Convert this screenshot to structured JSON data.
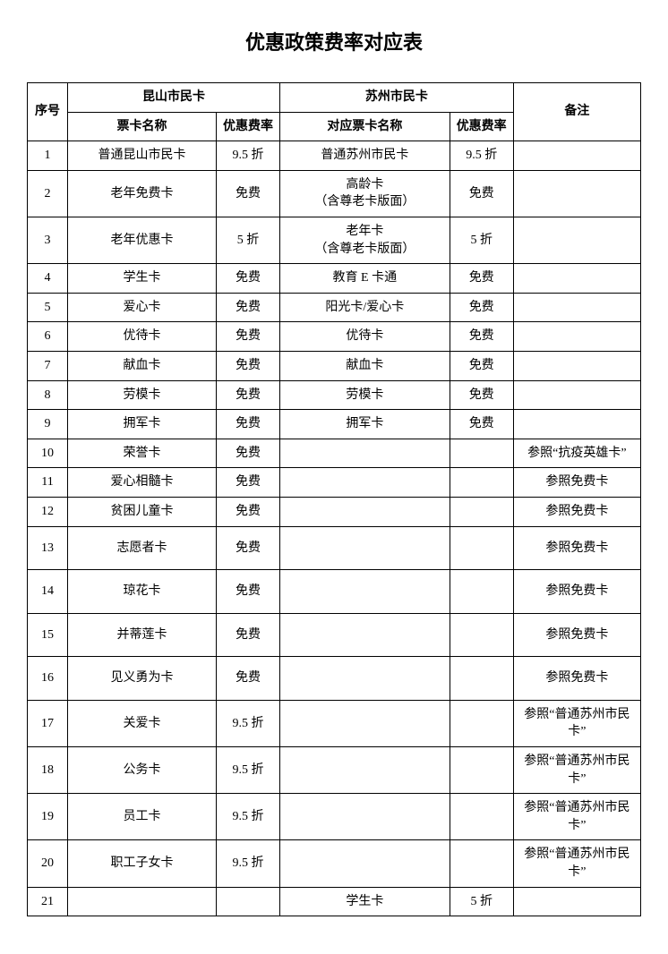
{
  "title": "优惠政策费率对应表",
  "headers": {
    "seq": "序号",
    "group1": "昆山市民卡",
    "group2": "苏州市民卡",
    "note": "备注",
    "name1": "票卡名称",
    "rate1": "优惠费率",
    "name2": "对应票卡名称",
    "rate2": "优惠费率"
  },
  "rows": [
    {
      "seq": "1",
      "name1": "普通昆山市民卡",
      "rate1": "9.5 折",
      "name2": "普通苏州市民卡",
      "rate2": "9.5 折",
      "note": ""
    },
    {
      "seq": "2",
      "name1": "老年免费卡",
      "rate1": "免费",
      "name2": "高龄卡\n（含尊老卡版面）",
      "rate2": "免费",
      "note": ""
    },
    {
      "seq": "3",
      "name1": "老年优惠卡",
      "rate1": "5 折",
      "name2": "老年卡\n（含尊老卡版面）",
      "rate2": "5 折",
      "note": ""
    },
    {
      "seq": "4",
      "name1": "学生卡",
      "rate1": "免费",
      "name2": "教育 E 卡通",
      "rate2": "免费",
      "note": ""
    },
    {
      "seq": "5",
      "name1": "爱心卡",
      "rate1": "免费",
      "name2": "阳光卡/爱心卡",
      "rate2": "免费",
      "note": ""
    },
    {
      "seq": "6",
      "name1": "优待卡",
      "rate1": "免费",
      "name2": "优待卡",
      "rate2": "免费",
      "note": ""
    },
    {
      "seq": "7",
      "name1": "献血卡",
      "rate1": "免费",
      "name2": "献血卡",
      "rate2": "免费",
      "note": ""
    },
    {
      "seq": "8",
      "name1": "劳模卡",
      "rate1": "免费",
      "name2": "劳模卡",
      "rate2": "免费",
      "note": ""
    },
    {
      "seq": "9",
      "name1": "拥军卡",
      "rate1": "免费",
      "name2": "拥军卡",
      "rate2": "免费",
      "note": ""
    },
    {
      "seq": "10",
      "name1": "荣誉卡",
      "rate1": "免费",
      "name2": "",
      "rate2": "",
      "note": "参照“抗疫英雄卡”"
    },
    {
      "seq": "11",
      "name1": "爱心相髓卡",
      "rate1": "免费",
      "name2": "",
      "rate2": "",
      "note": "参照免费卡"
    },
    {
      "seq": "12",
      "name1": "贫困儿童卡",
      "rate1": "免费",
      "name2": "",
      "rate2": "",
      "note": "参照免费卡"
    },
    {
      "seq": "13",
      "name1": "志愿者卡",
      "rate1": "免费",
      "name2": "",
      "rate2": "",
      "note": "参照免费卡"
    },
    {
      "seq": "14",
      "name1": "琼花卡",
      "rate1": "免费",
      "name2": "",
      "rate2": "",
      "note": "参照免费卡"
    },
    {
      "seq": "15",
      "name1": "并蒂莲卡",
      "rate1": "免费",
      "name2": "",
      "rate2": "",
      "note": "参照免费卡"
    },
    {
      "seq": "16",
      "name1": "见义勇为卡",
      "rate1": "免费",
      "name2": "",
      "rate2": "",
      "note": "参照免费卡"
    },
    {
      "seq": "17",
      "name1": "关爱卡",
      "rate1": "9.5 折",
      "name2": "",
      "rate2": "",
      "note": "参照“普通苏州市民卡”"
    },
    {
      "seq": "18",
      "name1": "公务卡",
      "rate1": "9.5 折",
      "name2": "",
      "rate2": "",
      "note": "参照“普通苏州市民卡”"
    },
    {
      "seq": "19",
      "name1": "员工卡",
      "rate1": "9.5 折",
      "name2": "",
      "rate2": "",
      "note": "参照“普通苏州市民卡”"
    },
    {
      "seq": "20",
      "name1": "职工子女卡",
      "rate1": "9.5 折",
      "name2": "",
      "rate2": "",
      "note": "参照“普通苏州市民卡”"
    },
    {
      "seq": "21",
      "name1": "",
      "rate1": "",
      "name2": "学生卡",
      "rate2": "5 折",
      "note": ""
    }
  ],
  "tall_rows": [
    "13",
    "14",
    "15",
    "16"
  ]
}
